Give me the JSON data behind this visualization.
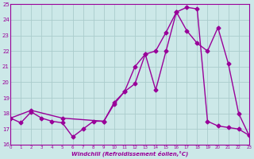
{
  "line1_x": [
    0,
    1,
    2,
    3,
    4,
    5,
    6,
    7,
    8,
    9,
    10,
    11,
    12,
    13,
    14,
    15,
    16,
    17,
    18,
    19,
    20,
    21,
    22,
    23
  ],
  "line1_y": [
    17.7,
    17.4,
    18.1,
    17.7,
    17.5,
    17.4,
    16.5,
    17.0,
    17.5,
    17.5,
    18.7,
    19.4,
    19.9,
    21.8,
    19.5,
    22.0,
    24.5,
    24.8,
    24.7,
    17.5,
    17.2,
    17.1,
    17.0,
    16.6
  ],
  "line2_x": [
    0,
    2,
    5,
    9,
    10,
    11,
    12,
    13,
    14,
    15,
    16,
    17,
    18,
    19,
    20,
    21,
    22,
    23
  ],
  "line2_y": [
    17.7,
    18.2,
    17.7,
    17.5,
    18.6,
    19.4,
    21.0,
    21.8,
    22.0,
    23.2,
    24.5,
    23.3,
    22.5,
    22.0,
    23.5,
    21.2,
    18.0,
    16.6
  ],
  "color": "#990099",
  "bg_color": "#cce8e8",
  "grid_color": "#aacccc",
  "xlabel": "Windchill (Refroidissement éolien,°C)",
  "ylim": [
    16,
    25
  ],
  "xlim": [
    0,
    23
  ],
  "yticks": [
    16,
    17,
    18,
    19,
    20,
    21,
    22,
    23,
    24,
    25
  ],
  "xticks": [
    0,
    1,
    2,
    3,
    4,
    5,
    6,
    7,
    8,
    9,
    10,
    11,
    12,
    13,
    14,
    15,
    16,
    17,
    18,
    19,
    20,
    21,
    22,
    23
  ],
  "marker": "D",
  "markersize": 2.5,
  "linewidth": 1.0
}
